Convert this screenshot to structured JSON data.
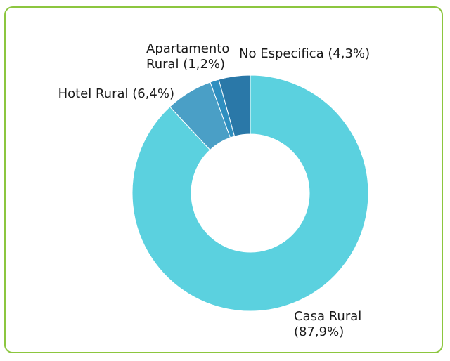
{
  "chart_data": {
    "type": "pie",
    "donut": true,
    "categories": [
      "Casa Rural",
      "Hotel Rural",
      "Apartamento Rural",
      "No Especifica"
    ],
    "values": [
      87.9,
      6.4,
      1.2,
      4.3
    ],
    "labels": [
      [
        "Casa Rural",
        "(87,9%)"
      ],
      [
        "Hotel Rural (6,4%)"
      ],
      [
        "Apartamento",
        "Rural (1,2%)"
      ],
      [
        "No Especifica (4,3%)"
      ]
    ],
    "colors": [
      "#5bd1df",
      "#4a9fc6",
      "#2f8fc0",
      "#2a78a8"
    ],
    "border_color": "#8cc63f"
  }
}
